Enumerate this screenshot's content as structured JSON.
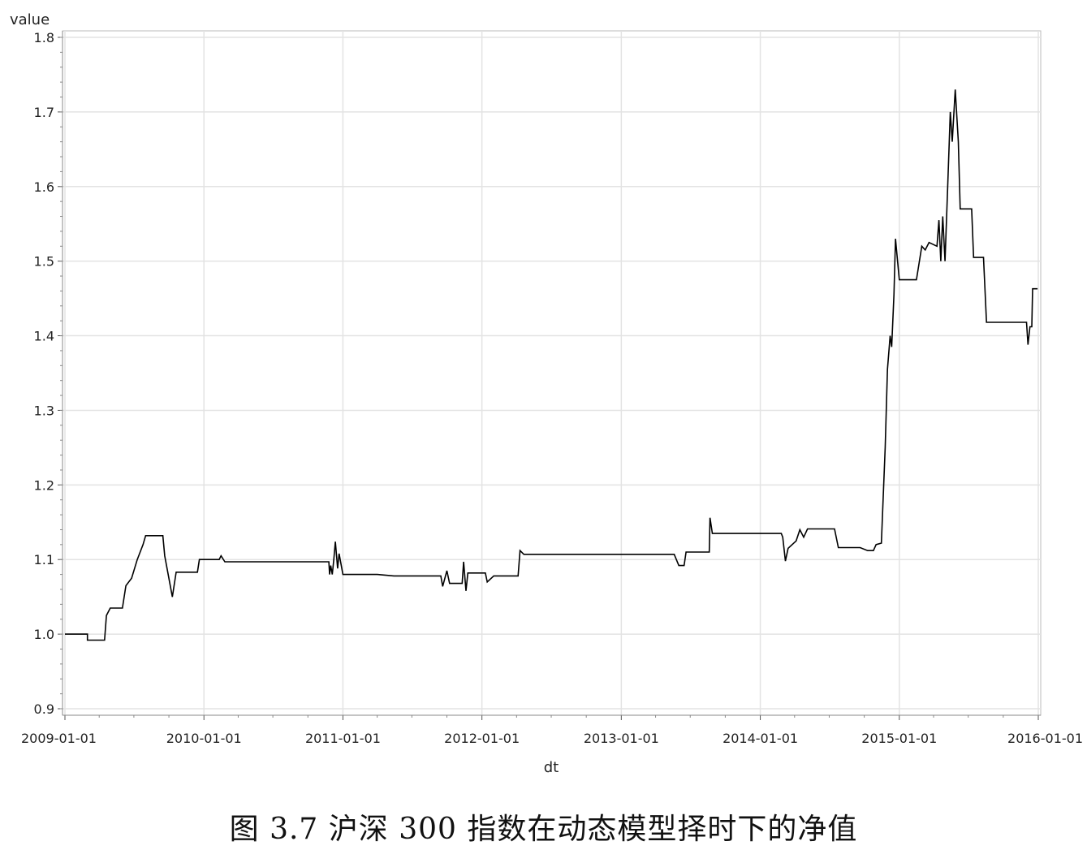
{
  "caption": "图 3.7 沪深 300 指数在动态模型择时下的净值",
  "chart_data": {
    "type": "line",
    "title": "",
    "xlabel": "dt",
    "ylabel": "value",
    "xlim": [
      "2009-01-01",
      "2016-01-01"
    ],
    "ylim": [
      0.9,
      1.8
    ],
    "yticks": [
      "0.9",
      "1.0",
      "1.1",
      "1.2",
      "1.3",
      "1.4",
      "1.5",
      "1.6",
      "1.7",
      "1.8"
    ],
    "xticks": [
      "2009-01-01",
      "2010-01-01",
      "2011-01-01",
      "2012-01-01",
      "2013-01-01",
      "2014-01-01",
      "2015-01-01",
      "2016-01-01"
    ],
    "grid": true,
    "series": [
      {
        "name": "",
        "color": "#000000",
        "points": [
          [
            "2009-01-01",
            1.0
          ],
          [
            "2009-03-01",
            1.0
          ],
          [
            "2009-03-01",
            0.992
          ],
          [
            "2009-04-15",
            0.992
          ],
          [
            "2009-04-20",
            1.025
          ],
          [
            "2009-04-30",
            1.035
          ],
          [
            "2009-06-01",
            1.035
          ],
          [
            "2009-06-10",
            1.065
          ],
          [
            "2009-06-25",
            1.075
          ],
          [
            "2009-07-10",
            1.1
          ],
          [
            "2009-07-25",
            1.12
          ],
          [
            "2009-08-01",
            1.132
          ],
          [
            "2009-09-15",
            1.132
          ],
          [
            "2009-09-20",
            1.105
          ],
          [
            "2009-10-10",
            1.05
          ],
          [
            "2009-10-20",
            1.083
          ],
          [
            "2009-12-15",
            1.083
          ],
          [
            "2009-12-20",
            1.1
          ],
          [
            "2010-01-20",
            1.1
          ],
          [
            "2010-02-10",
            1.1
          ],
          [
            "2010-02-15",
            1.105
          ],
          [
            "2010-02-25",
            1.097
          ],
          [
            "2010-11-25",
            1.097
          ],
          [
            "2010-11-27",
            1.08
          ],
          [
            "2010-11-30",
            1.092
          ],
          [
            "2010-12-04",
            1.08
          ],
          [
            "2010-12-08",
            1.1
          ],
          [
            "2010-12-12",
            1.124
          ],
          [
            "2010-12-18",
            1.088
          ],
          [
            "2010-12-22",
            1.108
          ],
          [
            "2011-01-01",
            1.08
          ],
          [
            "2011-04-01",
            1.08
          ],
          [
            "2011-05-15",
            1.078
          ],
          [
            "2011-09-15",
            1.078
          ],
          [
            "2011-09-20",
            1.064
          ],
          [
            "2011-10-01",
            1.085
          ],
          [
            "2011-10-08",
            1.068
          ],
          [
            "2011-11-10",
            1.068
          ],
          [
            "2011-11-14",
            1.097
          ],
          [
            "2011-11-20",
            1.058
          ],
          [
            "2011-11-25",
            1.082
          ],
          [
            "2012-01-10",
            1.082
          ],
          [
            "2012-01-15",
            1.07
          ],
          [
            "2012-02-01",
            1.078
          ],
          [
            "2012-03-25",
            1.078
          ],
          [
            "2012-04-05",
            1.078
          ],
          [
            "2012-04-10",
            1.112
          ],
          [
            "2012-04-20",
            1.107
          ],
          [
            "2013-05-20",
            1.107
          ],
          [
            "2013-06-01",
            1.092
          ],
          [
            "2013-06-15",
            1.092
          ],
          [
            "2013-06-20",
            1.11
          ],
          [
            "2013-08-20",
            1.11
          ],
          [
            "2013-08-22",
            1.156
          ],
          [
            "2013-08-28",
            1.135
          ],
          [
            "2014-02-25",
            1.135
          ],
          [
            "2014-03-01",
            1.13
          ],
          [
            "2014-03-08",
            1.098
          ],
          [
            "2014-03-15",
            1.115
          ],
          [
            "2014-04-05",
            1.125
          ],
          [
            "2014-04-15",
            1.14
          ],
          [
            "2014-04-25",
            1.13
          ],
          [
            "2014-05-05",
            1.141
          ],
          [
            "2014-07-15",
            1.141
          ],
          [
            "2014-07-25",
            1.116
          ],
          [
            "2014-09-20",
            1.116
          ],
          [
            "2014-10-10",
            1.112
          ],
          [
            "2014-10-25",
            1.112
          ],
          [
            "2014-11-01",
            1.12
          ],
          [
            "2014-11-15",
            1.122
          ],
          [
            "2014-11-25",
            1.25
          ],
          [
            "2014-12-01",
            1.355
          ],
          [
            "2014-12-08",
            1.4
          ],
          [
            "2014-12-12",
            1.385
          ],
          [
            "2014-12-18",
            1.455
          ],
          [
            "2014-12-22",
            1.53
          ],
          [
            "2015-01-01",
            1.475
          ],
          [
            "2015-02-15",
            1.475
          ],
          [
            "2015-03-01",
            1.52
          ],
          [
            "2015-03-10",
            1.515
          ],
          [
            "2015-03-20",
            1.525
          ],
          [
            "2015-04-10",
            1.52
          ],
          [
            "2015-04-15",
            1.555
          ],
          [
            "2015-04-20",
            1.5
          ],
          [
            "2015-04-25",
            1.56
          ],
          [
            "2015-05-01",
            1.5
          ],
          [
            "2015-05-08",
            1.6
          ],
          [
            "2015-05-15",
            1.7
          ],
          [
            "2015-05-20",
            1.66
          ],
          [
            "2015-05-28",
            1.73
          ],
          [
            "2015-06-05",
            1.66
          ],
          [
            "2015-06-10",
            1.57
          ],
          [
            "2015-07-10",
            1.57
          ],
          [
            "2015-07-15",
            1.505
          ],
          [
            "2015-08-10",
            1.505
          ],
          [
            "2015-08-18",
            1.418
          ],
          [
            "2015-12-01",
            1.418
          ],
          [
            "2015-12-05",
            1.388
          ],
          [
            "2015-12-10",
            1.412
          ],
          [
            "2015-12-15",
            1.412
          ],
          [
            "2015-12-17",
            1.463
          ],
          [
            "2015-12-30",
            1.463
          ]
        ]
      }
    ]
  }
}
